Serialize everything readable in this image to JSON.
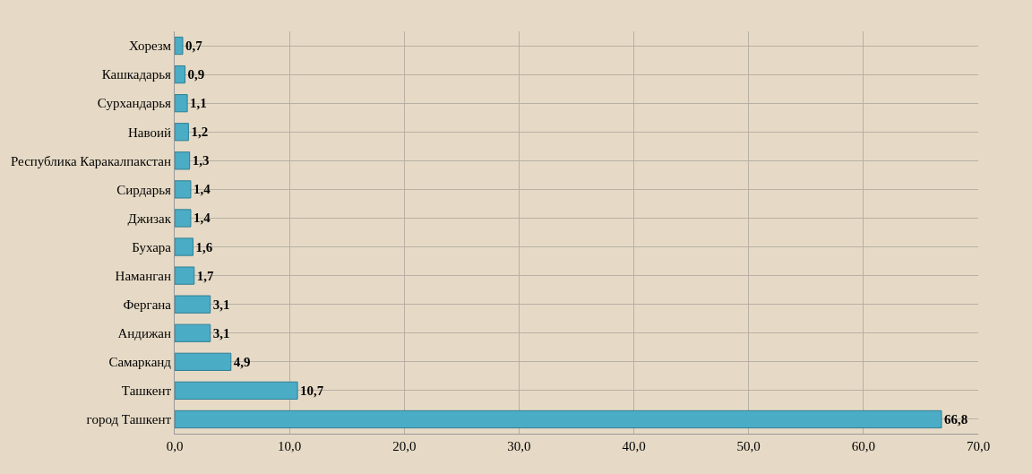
{
  "chart_data": {
    "type": "bar",
    "orientation": "horizontal",
    "categories": [
      "Хорезм",
      "Кашкадарья",
      "Сурхандарья",
      "Навоий",
      "Республика Каракалпакстан",
      "Сирдарья",
      "Джизак",
      "Бухара",
      "Наманган",
      "Фергана",
      "Андижан",
      "Самарканд",
      "Ташкент",
      "город Ташкент"
    ],
    "values": [
      0.7,
      0.9,
      1.1,
      1.2,
      1.3,
      1.4,
      1.4,
      1.6,
      1.7,
      3.1,
      3.1,
      4.9,
      10.7,
      66.8
    ],
    "value_labels": [
      "0,7",
      "0,9",
      "1,1",
      "1,2",
      "1,3",
      "1,4",
      "1,4",
      "1,6",
      "1,7",
      "3,1",
      "3,1",
      "4,9",
      "10,7",
      "66,8"
    ],
    "color": "#4bacc6",
    "xlim": [
      0,
      70
    ],
    "xticks": [
      {
        "value": 0,
        "label": "0,0"
      },
      {
        "value": 10,
        "label": "10,0"
      },
      {
        "value": 20,
        "label": "20,0"
      },
      {
        "value": 30,
        "label": "30,0"
      },
      {
        "value": 40,
        "label": "40,0"
      },
      {
        "value": 50,
        "label": "50,0"
      },
      {
        "value": 60,
        "label": "60,0"
      },
      {
        "value": 70,
        "label": "70,0"
      }
    ],
    "grid": true
  }
}
